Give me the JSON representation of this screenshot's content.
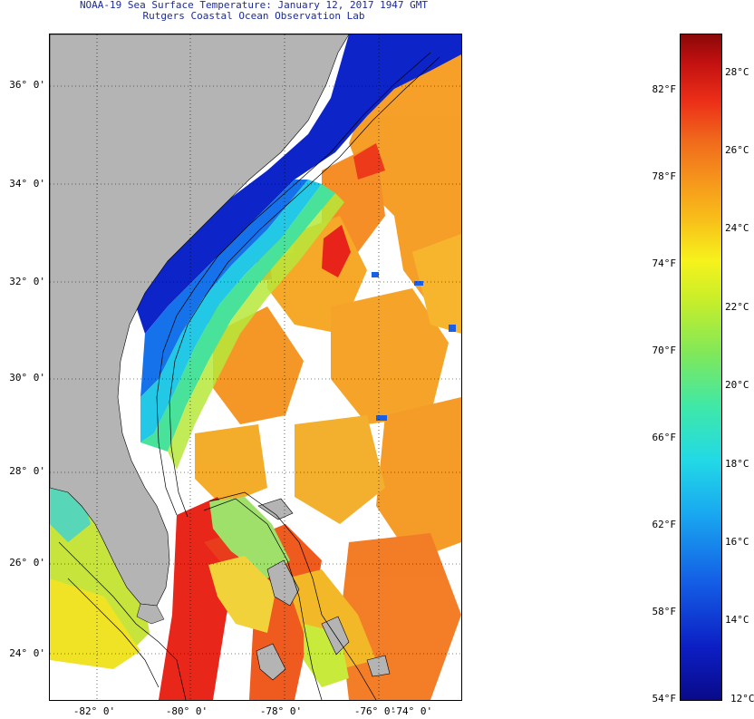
{
  "header": {
    "title": "NOAA-19 Sea Surface Temperature:  January 12, 2017 1947 GMT",
    "subtitle": "Rutgers Coastal Ocean Observation Lab"
  },
  "map": {
    "latitude_labels": [
      "36° 0'",
      "34° 0'",
      "32° 0'",
      "30° 0'",
      "28° 0'",
      "26° 0'",
      "24° 0'"
    ],
    "longitude_labels": [
      "-82° 0'",
      "-80° 0'",
      "-78° 0'",
      "-76° 0'",
      "-74° 0'"
    ],
    "land_color": "#b4b4b4",
    "no_data_color": "#ffffff",
    "grid": "dotted"
  },
  "colorbar": {
    "fahrenheit_labels": [
      "82°F",
      "78°F",
      "74°F",
      "70°F",
      "66°F",
      "62°F",
      "58°F",
      "54°F"
    ],
    "celsius_labels": [
      "28°C",
      "26°C",
      "24°C",
      "22°C",
      "20°C",
      "18°C",
      "16°C",
      "14°C",
      "12°C"
    ],
    "min_color": "#0a0a8a",
    "max_color": "#8a0808"
  }
}
